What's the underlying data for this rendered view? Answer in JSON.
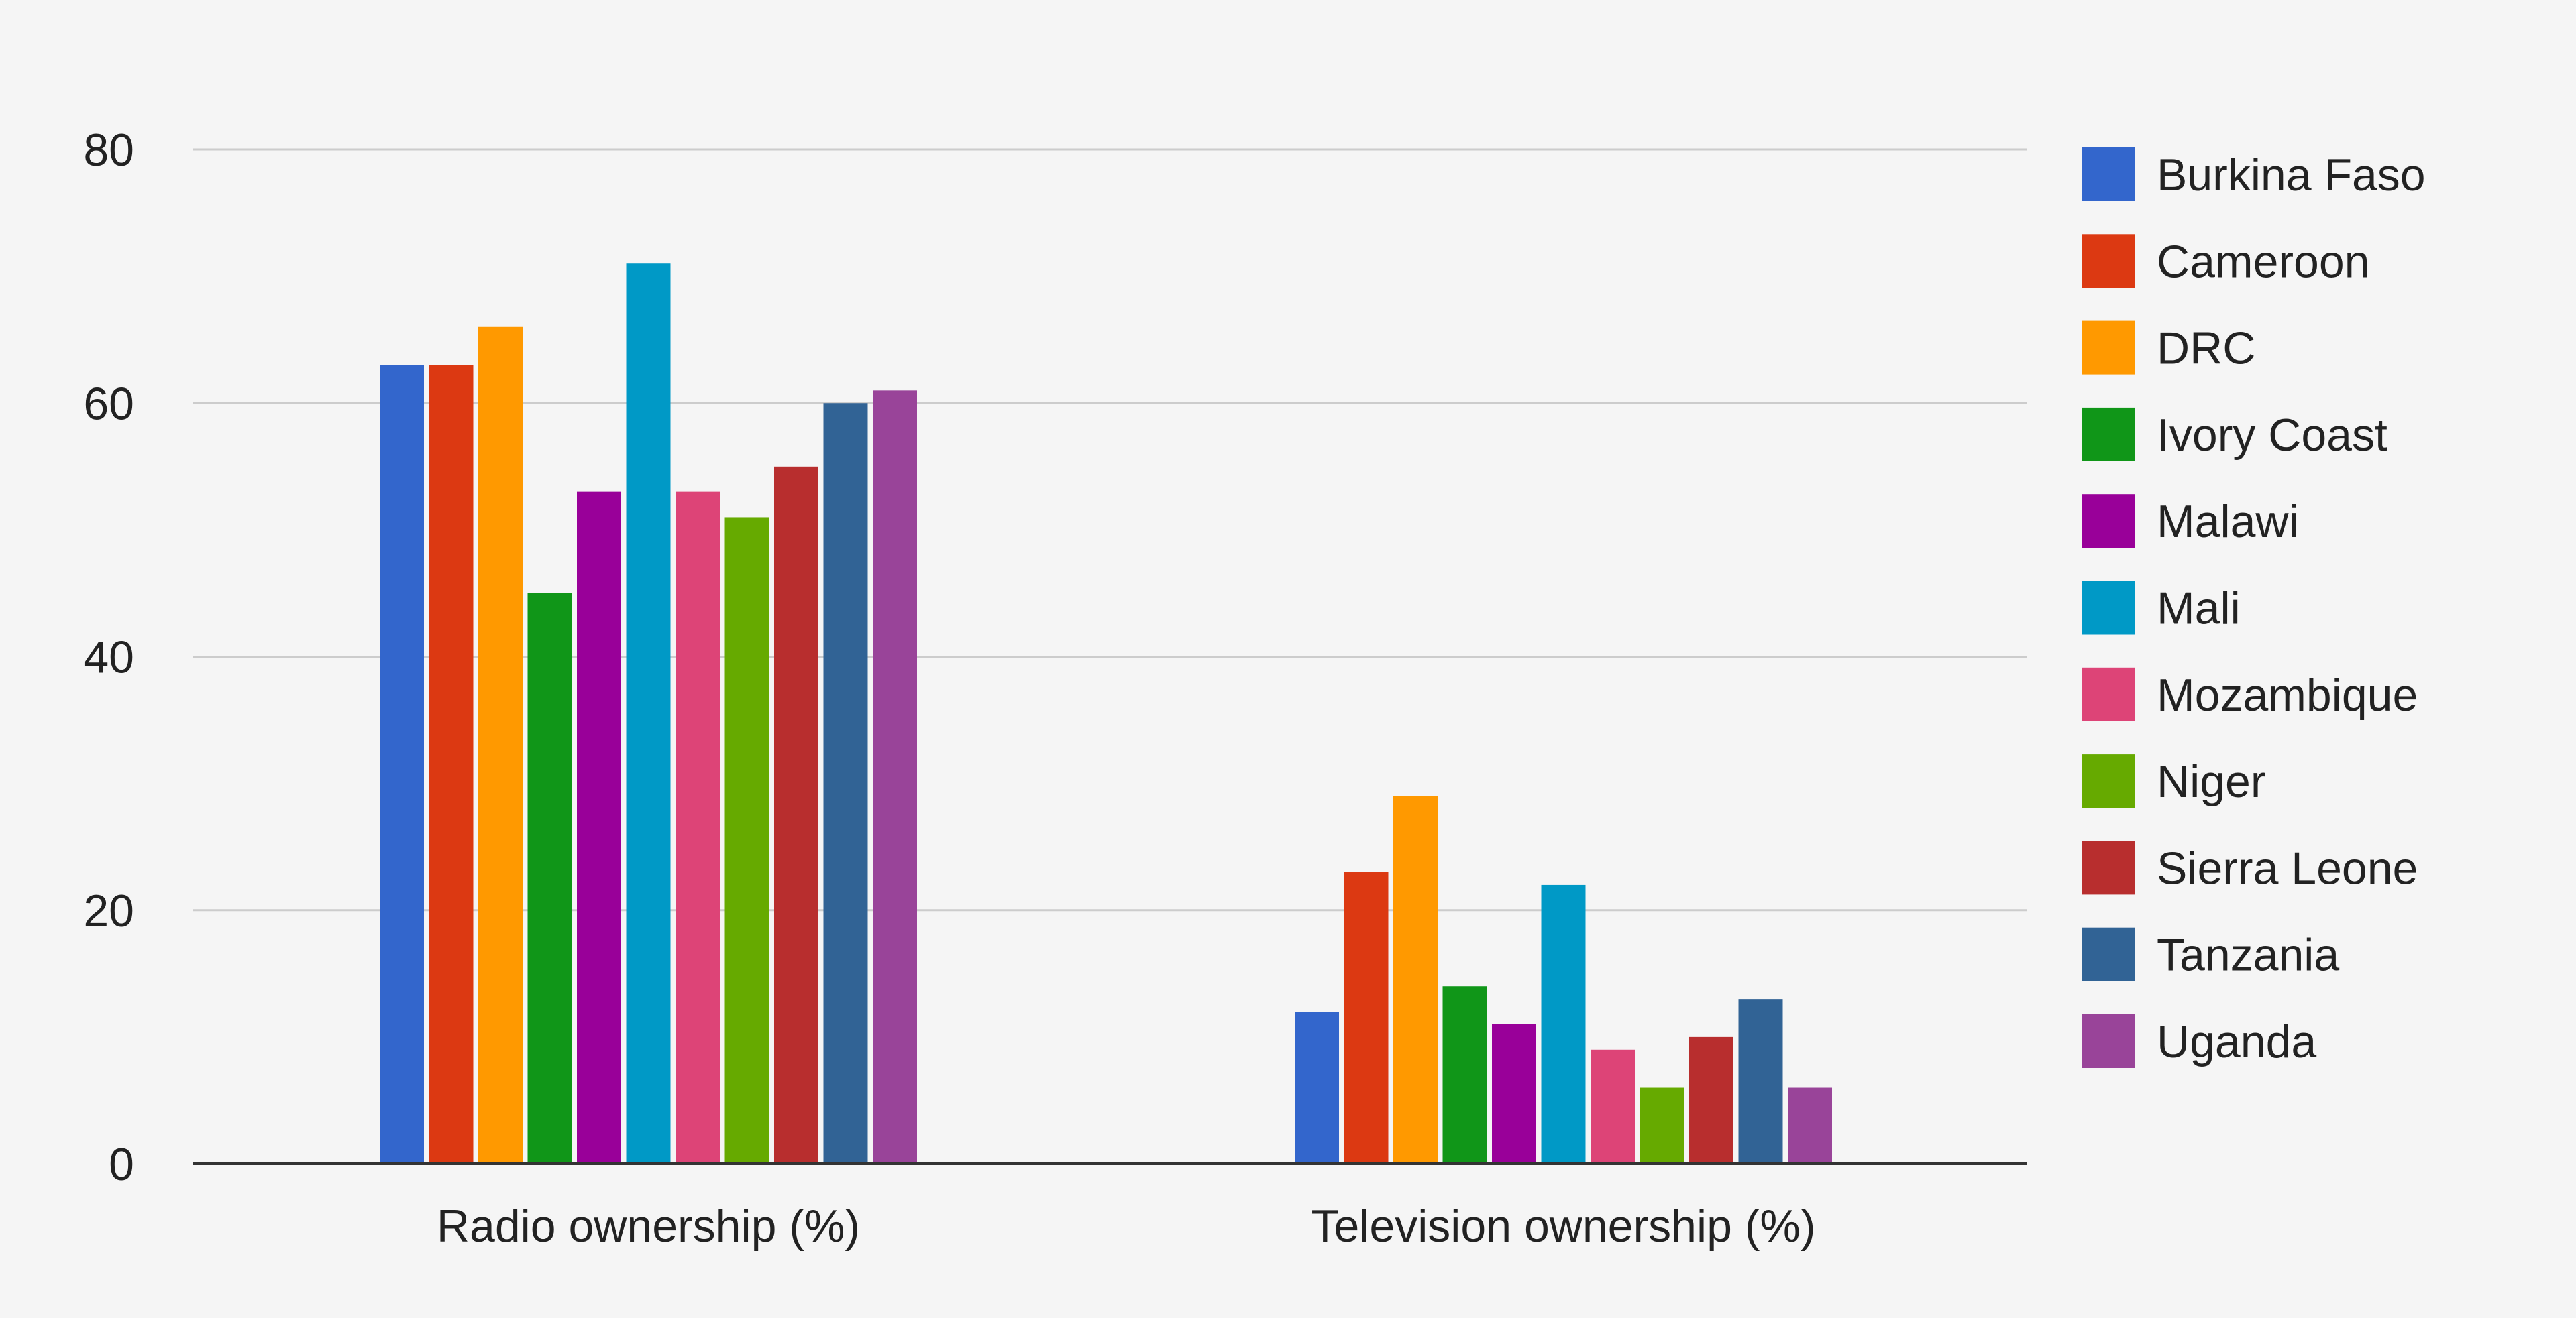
{
  "chart_data": {
    "type": "bar",
    "title": "",
    "xlabel": "",
    "ylabel": "",
    "ylim": [
      0,
      80
    ],
    "yticks": [
      "0",
      "20",
      "40",
      "60",
      "80"
    ],
    "grid": true,
    "legend_position": "right",
    "categories": [
      "Radio ownership (%)",
      "Television ownership (%)"
    ],
    "series": [
      {
        "name": "Burkina Faso",
        "color": "#3366cc",
        "values": [
          63,
          12
        ]
      },
      {
        "name": "Cameroon",
        "color": "#dc3912",
        "values": [
          63,
          23
        ]
      },
      {
        "name": "DRC",
        "color": "#ff9900",
        "values": [
          66,
          29
        ]
      },
      {
        "name": "Ivory Coast",
        "color": "#109618",
        "values": [
          45,
          14
        ]
      },
      {
        "name": "Malawi",
        "color": "#990099",
        "values": [
          53,
          11
        ]
      },
      {
        "name": "Mali",
        "color": "#0099c6",
        "values": [
          71,
          22
        ]
      },
      {
        "name": "Mozambique",
        "color": "#dd4477",
        "values": [
          53,
          9
        ]
      },
      {
        "name": "Niger",
        "color": "#66aa00",
        "values": [
          51,
          6
        ]
      },
      {
        "name": "Sierra Leone",
        "color": "#b82e2e",
        "values": [
          55,
          10
        ]
      },
      {
        "name": "Tanzania",
        "color": "#316395",
        "values": [
          60,
          13
        ]
      },
      {
        "name": "Uganda",
        "color": "#994499",
        "values": [
          61,
          6
        ]
      }
    ]
  }
}
